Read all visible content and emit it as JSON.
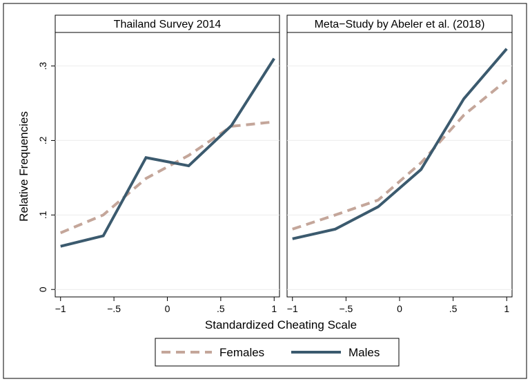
{
  "chart_data": {
    "type": "line",
    "xlabel": "Standardized Cheating Scale",
    "ylabel": "Relative Frequencies",
    "xlim": [
      -1.05,
      1.05
    ],
    "ylim": [
      -0.01,
      0.345
    ],
    "x_ticks": [
      -1,
      -0.5,
      0,
      0.5,
      1
    ],
    "x_tick_labels": [
      "−1",
      "−.5",
      "0",
      ".5",
      "1"
    ],
    "y_ticks": [
      0,
      0.1,
      0.2,
      0.3
    ],
    "y_tick_labels": [
      "0",
      ".1",
      ".2",
      ".3"
    ],
    "grid": true,
    "legend": {
      "placement": "bottom",
      "entries": [
        {
          "name": "Females",
          "color": "#c4a69a",
          "style": "dashed"
        },
        {
          "name": "Males",
          "color": "#3b5a6e",
          "style": "solid"
        }
      ]
    },
    "panels": [
      {
        "title": "Thailand Survey 2014",
        "x": [
          -1,
          -0.6,
          -0.2,
          0.2,
          0.6,
          1
        ],
        "series": [
          {
            "name": "Females",
            "values": [
              0.076,
              0.1,
              0.149,
              0.18,
              0.219,
              0.225
            ]
          },
          {
            "name": "Males",
            "values": [
              0.058,
              0.072,
              0.177,
              0.166,
              0.22,
              0.31
            ]
          }
        ]
      },
      {
        "title": "Meta−Study by Abeler et al. (2018)",
        "x": [
          -1,
          -0.6,
          -0.2,
          0.2,
          0.6,
          1
        ],
        "series": [
          {
            "name": "Females",
            "values": [
              0.081,
              0.1,
              0.12,
              0.17,
              0.234,
              0.281
            ]
          },
          {
            "name": "Males",
            "values": [
              0.068,
              0.081,
              0.111,
              0.161,
              0.256,
              0.323
            ]
          }
        ]
      }
    ]
  }
}
